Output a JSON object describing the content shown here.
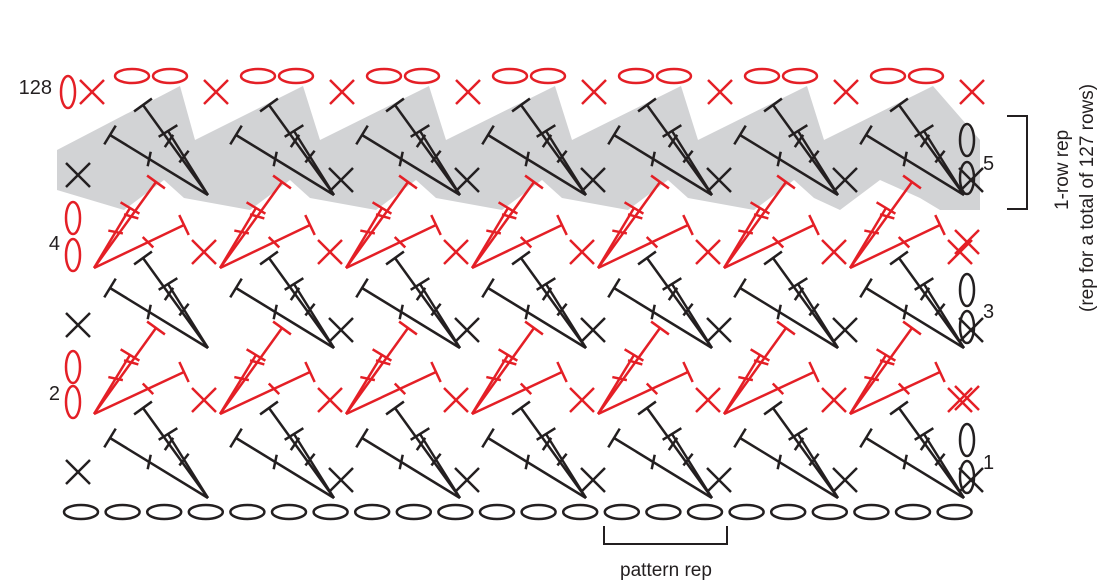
{
  "diagram": {
    "type": "crochet-stitch-chart",
    "colors": {
      "dark": "#231f20",
      "red": "#e41f26",
      "highlight": "#d2d3d5"
    },
    "stitch_symbols": [
      "chain",
      "single-crochet",
      "double-crochet"
    ],
    "row_labels": {
      "row1": "1",
      "row2": "2",
      "row3": "3",
      "row4": "4",
      "row5": "5",
      "row128": "128"
    },
    "repeat_note": {
      "line1": "1-row rep",
      "line2": "(rep for a total of 127 rows)"
    },
    "pattern_rep_label": "pattern rep",
    "repeats_across": 7,
    "foundation_chains": 22
  }
}
